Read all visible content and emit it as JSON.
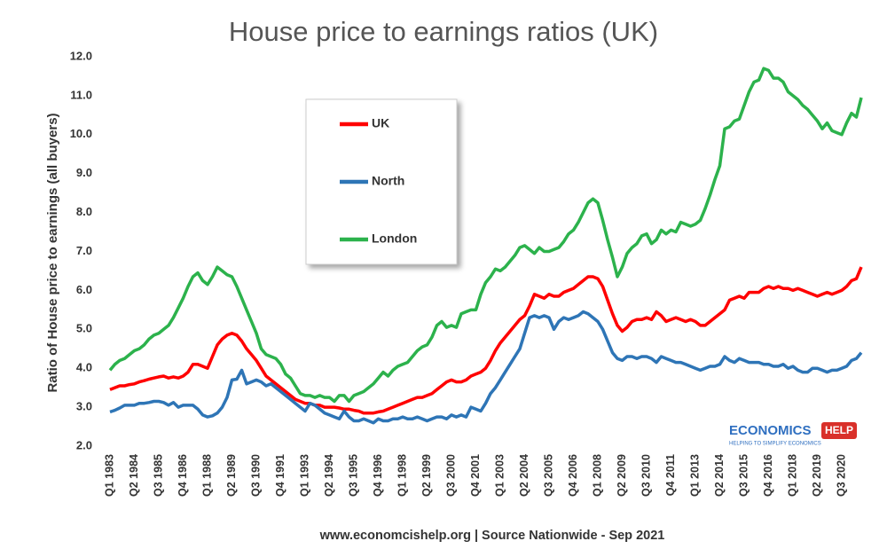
{
  "chart_data": {
    "type": "line",
    "title": "House price to earnings ratios (UK)",
    "y_label": "Ratio of House price to earnings (all buyers)",
    "source": "www.economcishelp.org | Source Nationwide - Sep 2021",
    "categories": [
      "Q1 1983",
      null,
      null,
      null,
      null,
      "Q2 1984",
      null,
      null,
      null,
      null,
      "Q3 1985",
      null,
      null,
      null,
      null,
      "Q4 1986",
      null,
      null,
      null,
      null,
      "Q1 1988",
      null,
      null,
      null,
      null,
      "Q2 1989",
      null,
      null,
      null,
      null,
      "Q3 1990",
      null,
      null,
      null,
      null,
      "Q4 1991",
      null,
      null,
      null,
      null,
      "Q1 1993",
      null,
      null,
      null,
      null,
      "Q2 1994",
      null,
      null,
      null,
      null,
      "Q3 1995",
      null,
      null,
      null,
      null,
      "Q4 1996",
      null,
      null,
      null,
      null,
      "Q1 1998",
      null,
      null,
      null,
      null,
      "Q2 1999",
      null,
      null,
      null,
      null,
      "Q3 2000",
      null,
      null,
      null,
      null,
      "Q4 2001",
      null,
      null,
      null,
      null,
      "Q1 2003",
      null,
      null,
      null,
      null,
      "Q2 2004",
      null,
      null,
      null,
      null,
      "Q3 2005",
      null,
      null,
      null,
      null,
      "Q4 2006",
      null,
      null,
      null,
      null,
      "Q1 2008",
      null,
      null,
      null,
      null,
      "Q2 2009",
      null,
      null,
      null,
      null,
      "Q3 2010",
      null,
      null,
      null,
      null,
      "Q4 2011",
      null,
      null,
      null,
      null,
      "Q1 2013",
      null,
      null,
      null,
      null,
      "Q2 2014",
      null,
      null,
      null,
      null,
      "Q3 2015",
      null,
      null,
      null,
      null,
      "Q4 2016",
      null,
      null,
      null,
      null,
      "Q1 2018",
      null,
      null,
      null,
      null,
      "Q2 2019",
      null,
      null,
      null,
      null,
      "Q3 2020",
      null,
      null,
      null,
      null
    ],
    "series": [
      {
        "name": "UK",
        "color": "#ff0000",
        "values": [
          3.45,
          3.5,
          3.55,
          3.55,
          3.58,
          3.6,
          3.65,
          3.68,
          3.72,
          3.75,
          3.78,
          3.8,
          3.75,
          3.78,
          3.75,
          3.8,
          3.9,
          4.1,
          4.1,
          4.05,
          4.0,
          4.3,
          4.6,
          4.75,
          4.85,
          4.9,
          4.85,
          4.7,
          4.5,
          4.35,
          4.2,
          4.0,
          3.8,
          3.7,
          3.6,
          3.5,
          3.4,
          3.3,
          3.2,
          3.15,
          3.1,
          3.1,
          3.05,
          3.05,
          3.0,
          3.0,
          3.0,
          2.98,
          2.95,
          2.95,
          2.92,
          2.9,
          2.85,
          2.85,
          2.85,
          2.88,
          2.9,
          2.95,
          3.0,
          3.05,
          3.1,
          3.15,
          3.2,
          3.25,
          3.25,
          3.3,
          3.35,
          3.45,
          3.55,
          3.65,
          3.7,
          3.65,
          3.65,
          3.7,
          3.8,
          3.85,
          3.9,
          4.0,
          4.2,
          4.45,
          4.65,
          4.8,
          4.95,
          5.1,
          5.25,
          5.35,
          5.6,
          5.9,
          5.85,
          5.8,
          5.9,
          5.85,
          5.85,
          5.95,
          6.0,
          6.05,
          6.15,
          6.25,
          6.35,
          6.35,
          6.3,
          6.1,
          5.75,
          5.4,
          5.1,
          4.95,
          5.05,
          5.2,
          5.25,
          5.25,
          5.3,
          5.25,
          5.45,
          5.35,
          5.2,
          5.25,
          5.3,
          5.25,
          5.2,
          5.25,
          5.2,
          5.1,
          5.1,
          5.2,
          5.3,
          5.4,
          5.5,
          5.75,
          5.8,
          5.85,
          5.8,
          5.95,
          5.95,
          5.95,
          6.05,
          6.1,
          6.05,
          6.1,
          6.05,
          6.05,
          6.0,
          6.05,
          6.0,
          5.95,
          5.9,
          5.85,
          5.9,
          5.95,
          5.9,
          5.95,
          6.0,
          6.1,
          6.25,
          6.3,
          6.6
        ]
      },
      {
        "name": "North",
        "color": "#2e75b6",
        "values": [
          2.88,
          2.92,
          2.98,
          3.05,
          3.05,
          3.05,
          3.1,
          3.1,
          3.12,
          3.15,
          3.15,
          3.12,
          3.05,
          3.12,
          3.0,
          3.05,
          3.05,
          3.05,
          2.95,
          2.8,
          2.75,
          2.78,
          2.85,
          3.0,
          3.25,
          3.7,
          3.72,
          3.95,
          3.6,
          3.65,
          3.7,
          3.65,
          3.55,
          3.6,
          3.5,
          3.4,
          3.3,
          3.2,
          3.1,
          3.0,
          2.9,
          3.1,
          3.05,
          2.95,
          2.85,
          2.8,
          2.75,
          2.7,
          2.9,
          2.75,
          2.65,
          2.65,
          2.7,
          2.65,
          2.6,
          2.7,
          2.65,
          2.65,
          2.7,
          2.7,
          2.75,
          2.7,
          2.7,
          2.75,
          2.7,
          2.65,
          2.7,
          2.75,
          2.75,
          2.7,
          2.8,
          2.75,
          2.8,
          2.75,
          3.0,
          2.95,
          2.9,
          3.1,
          3.35,
          3.5,
          3.7,
          3.9,
          4.1,
          4.3,
          4.5,
          4.9,
          5.3,
          5.35,
          5.3,
          5.35,
          5.3,
          5.0,
          5.2,
          5.3,
          5.25,
          5.3,
          5.35,
          5.45,
          5.4,
          5.3,
          5.2,
          5.0,
          4.7,
          4.4,
          4.25,
          4.2,
          4.3,
          4.3,
          4.25,
          4.3,
          4.3,
          4.25,
          4.15,
          4.3,
          4.25,
          4.2,
          4.15,
          4.15,
          4.1,
          4.05,
          4.0,
          3.95,
          4.0,
          4.05,
          4.05,
          4.1,
          4.3,
          4.2,
          4.15,
          4.25,
          4.2,
          4.15,
          4.15,
          4.15,
          4.1,
          4.1,
          4.05,
          4.05,
          4.1,
          4.0,
          4.05,
          3.95,
          3.9,
          3.9,
          4.0,
          4.0,
          3.95,
          3.9,
          3.95,
          3.95,
          4.0,
          4.05,
          4.2,
          4.25,
          4.4
        ]
      },
      {
        "name": "London",
        "color": "#2cb24c",
        "values": [
          3.95,
          4.1,
          4.2,
          4.25,
          4.35,
          4.45,
          4.5,
          4.6,
          4.75,
          4.85,
          4.9,
          5.0,
          5.1,
          5.3,
          5.55,
          5.8,
          6.1,
          6.35,
          6.45,
          6.25,
          6.15,
          6.35,
          6.6,
          6.5,
          6.4,
          6.35,
          6.1,
          5.8,
          5.5,
          5.2,
          4.9,
          4.5,
          4.35,
          4.3,
          4.25,
          4.1,
          3.85,
          3.75,
          3.55,
          3.35,
          3.3,
          3.3,
          3.25,
          3.3,
          3.25,
          3.25,
          3.15,
          3.3,
          3.3,
          3.15,
          3.3,
          3.35,
          3.4,
          3.5,
          3.6,
          3.75,
          3.9,
          3.8,
          3.95,
          4.05,
          4.1,
          4.15,
          4.3,
          4.45,
          4.55,
          4.6,
          4.8,
          5.1,
          5.2,
          5.05,
          5.1,
          5.05,
          5.4,
          5.45,
          5.5,
          5.5,
          5.9,
          6.2,
          6.35,
          6.55,
          6.5,
          6.6,
          6.75,
          6.9,
          7.1,
          7.15,
          7.05,
          6.95,
          7.1,
          7.0,
          7.0,
          7.05,
          7.1,
          7.25,
          7.45,
          7.55,
          7.75,
          8.0,
          8.25,
          8.35,
          8.25,
          7.8,
          7.3,
          6.85,
          6.35,
          6.6,
          6.95,
          7.1,
          7.2,
          7.4,
          7.45,
          7.2,
          7.3,
          7.55,
          7.45,
          7.55,
          7.5,
          7.75,
          7.7,
          7.65,
          7.7,
          7.8,
          8.1,
          8.45,
          8.85,
          9.2,
          10.15,
          10.2,
          10.35,
          10.4,
          10.75,
          11.1,
          11.35,
          11.4,
          11.7,
          11.65,
          11.45,
          11.45,
          11.35,
          11.1,
          11.0,
          10.9,
          10.75,
          10.65,
          10.5,
          10.35,
          10.15,
          10.3,
          10.1,
          10.05,
          10.0,
          10.3,
          10.55,
          10.45,
          10.95
        ]
      }
    ],
    "ylim": [
      2,
      12
    ],
    "yticks": [
      {
        "value": 2,
        "label": "2.0"
      },
      {
        "value": 3,
        "label": "3.0"
      },
      {
        "value": 4,
        "label": "4.0"
      },
      {
        "value": 5,
        "label": "5.0"
      },
      {
        "value": 6,
        "label": "6.0"
      },
      {
        "value": 7,
        "label": "7.0"
      },
      {
        "value": 8,
        "label": "8.0"
      },
      {
        "value": 9,
        "label": "9.0"
      },
      {
        "value": 10,
        "label": "10.0"
      },
      {
        "value": 11,
        "label": "11.0"
      },
      {
        "value": 12,
        "label": "12.0"
      }
    ],
    "grid": false,
    "legend_position": "upper-left"
  },
  "logo": {
    "word": "ECONOMICS",
    "badge": "HELP",
    "tagline": "HELPING TO SIMPLIFY ECONOMICS"
  }
}
